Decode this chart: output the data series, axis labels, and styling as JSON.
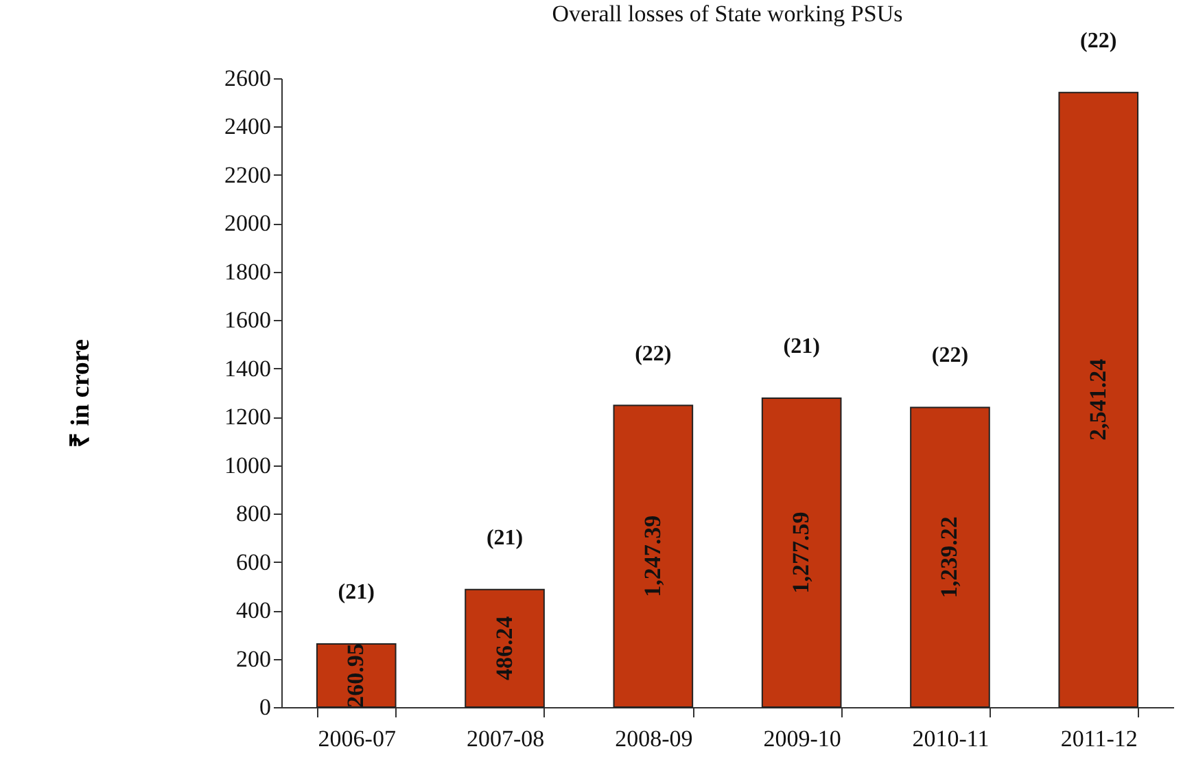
{
  "chart_data": {
    "type": "bar",
    "title": "Overall losses of State working PSUs",
    "ylabel": "₹ in crore",
    "categories": [
      "2006-07",
      "2007-08",
      "2008-09",
      "2009-10",
      "2010-11",
      "2011-12"
    ],
    "values": [
      260.95,
      486.24,
      1247.39,
      1277.59,
      1239.22,
      2541.24
    ],
    "value_labels": [
      "260.95",
      "486.24",
      "1,247.39",
      "1,277.59",
      "1,239.22",
      "2,541.24"
    ],
    "color": "#c2370f",
    "ylim": [
      0,
      2600
    ],
    "yticks": [
      0,
      200,
      400,
      600,
      800,
      1000,
      1200,
      1400,
      1600,
      1800,
      2000,
      2200,
      2400,
      2600
    ],
    "grid": false,
    "annotations": [
      {
        "text": "(21)",
        "x": "2006-07",
        "y": 260.95
      },
      {
        "text": "(21)",
        "x": "2007-08",
        "y": 486.24
      },
      {
        "text": "(22)",
        "x": "2008-09",
        "y": 1247.39
      },
      {
        "text": "(21)",
        "x": "2009-10",
        "y": 1277.59
      },
      {
        "text": "(22)",
        "x": "2010-11",
        "y": 1239.22
      },
      {
        "text": "(22)",
        "x": "2011-12",
        "y": 2541.24
      }
    ]
  }
}
